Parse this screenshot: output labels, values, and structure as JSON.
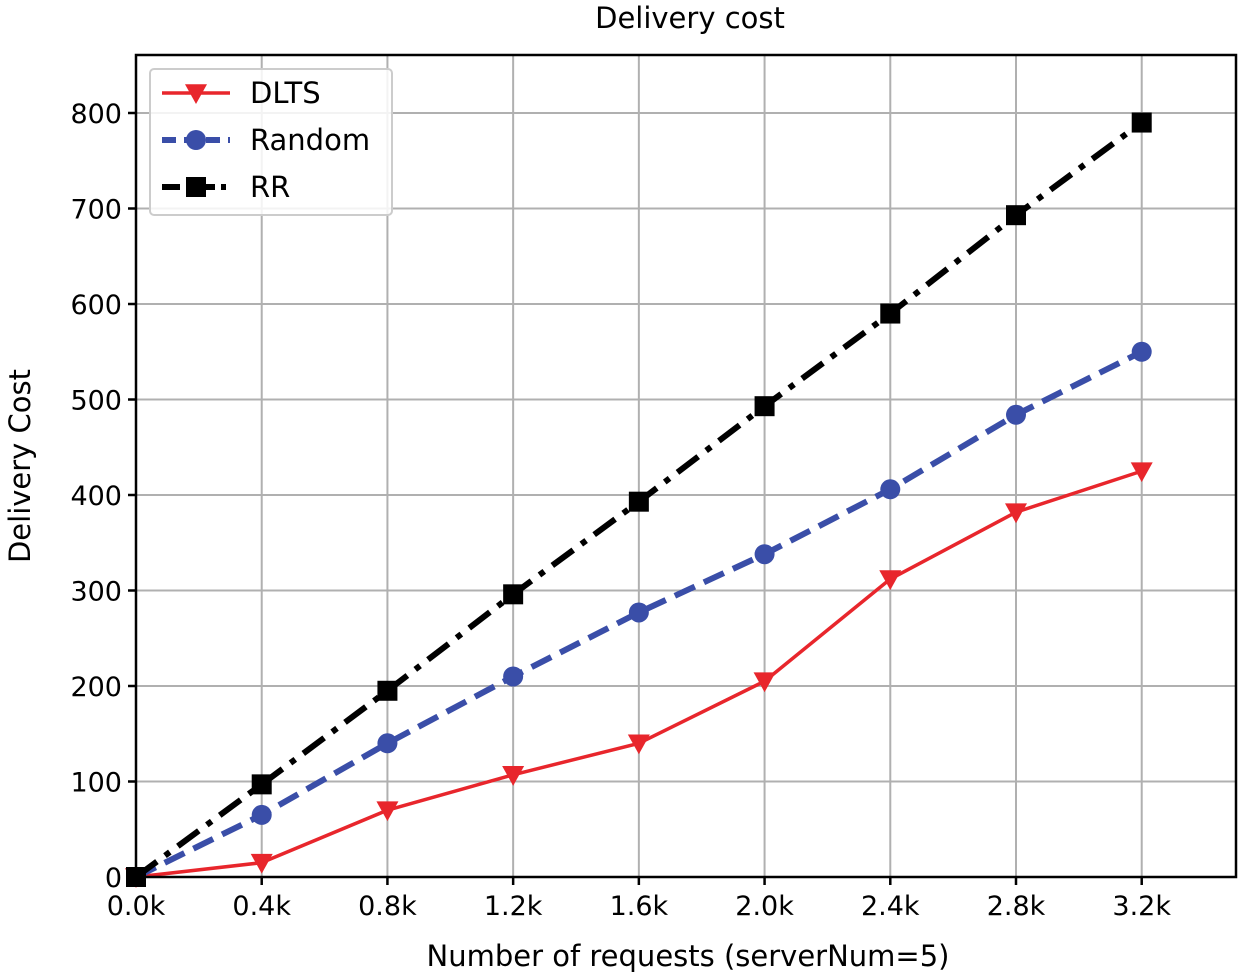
{
  "chart_data": {
    "type": "line",
    "title": "Delivery cost",
    "xlabel": "Number of requests (serverNum=5)",
    "ylabel": "Delivery Cost",
    "x": [
      0,
      400,
      800,
      1200,
      1600,
      2000,
      2400,
      2800,
      3200
    ],
    "x_tick_labels": [
      "0.0k",
      "0.4k",
      "0.8k",
      "1.2k",
      "1.6k",
      "2.0k",
      "2.4k",
      "2.8k",
      "3.2k"
    ],
    "xlim": [
      0,
      3500
    ],
    "ylim": [
      0,
      800
    ],
    "y_ticks": [
      0,
      100,
      200,
      300,
      400,
      500,
      600,
      700,
      800
    ],
    "grid": true,
    "legend_position": "top-left",
    "series": [
      {
        "name": "DLTS",
        "values": [
          0,
          15,
          70,
          107,
          140,
          205,
          312,
          382,
          425
        ],
        "color": "#e8262c",
        "marker": "triangle-down",
        "line_style": "solid"
      },
      {
        "name": "Random",
        "values": [
          0,
          65,
          140,
          210,
          277,
          338,
          406,
          484,
          550
        ],
        "color": "#3a4ea8",
        "marker": "circle",
        "line_style": "dashed"
      },
      {
        "name": "RR",
        "values": [
          0,
          97,
          195,
          296,
          393,
          493,
          590,
          693,
          790
        ],
        "color": "#000000",
        "marker": "square",
        "line_style": "dash-dot"
      }
    ]
  }
}
